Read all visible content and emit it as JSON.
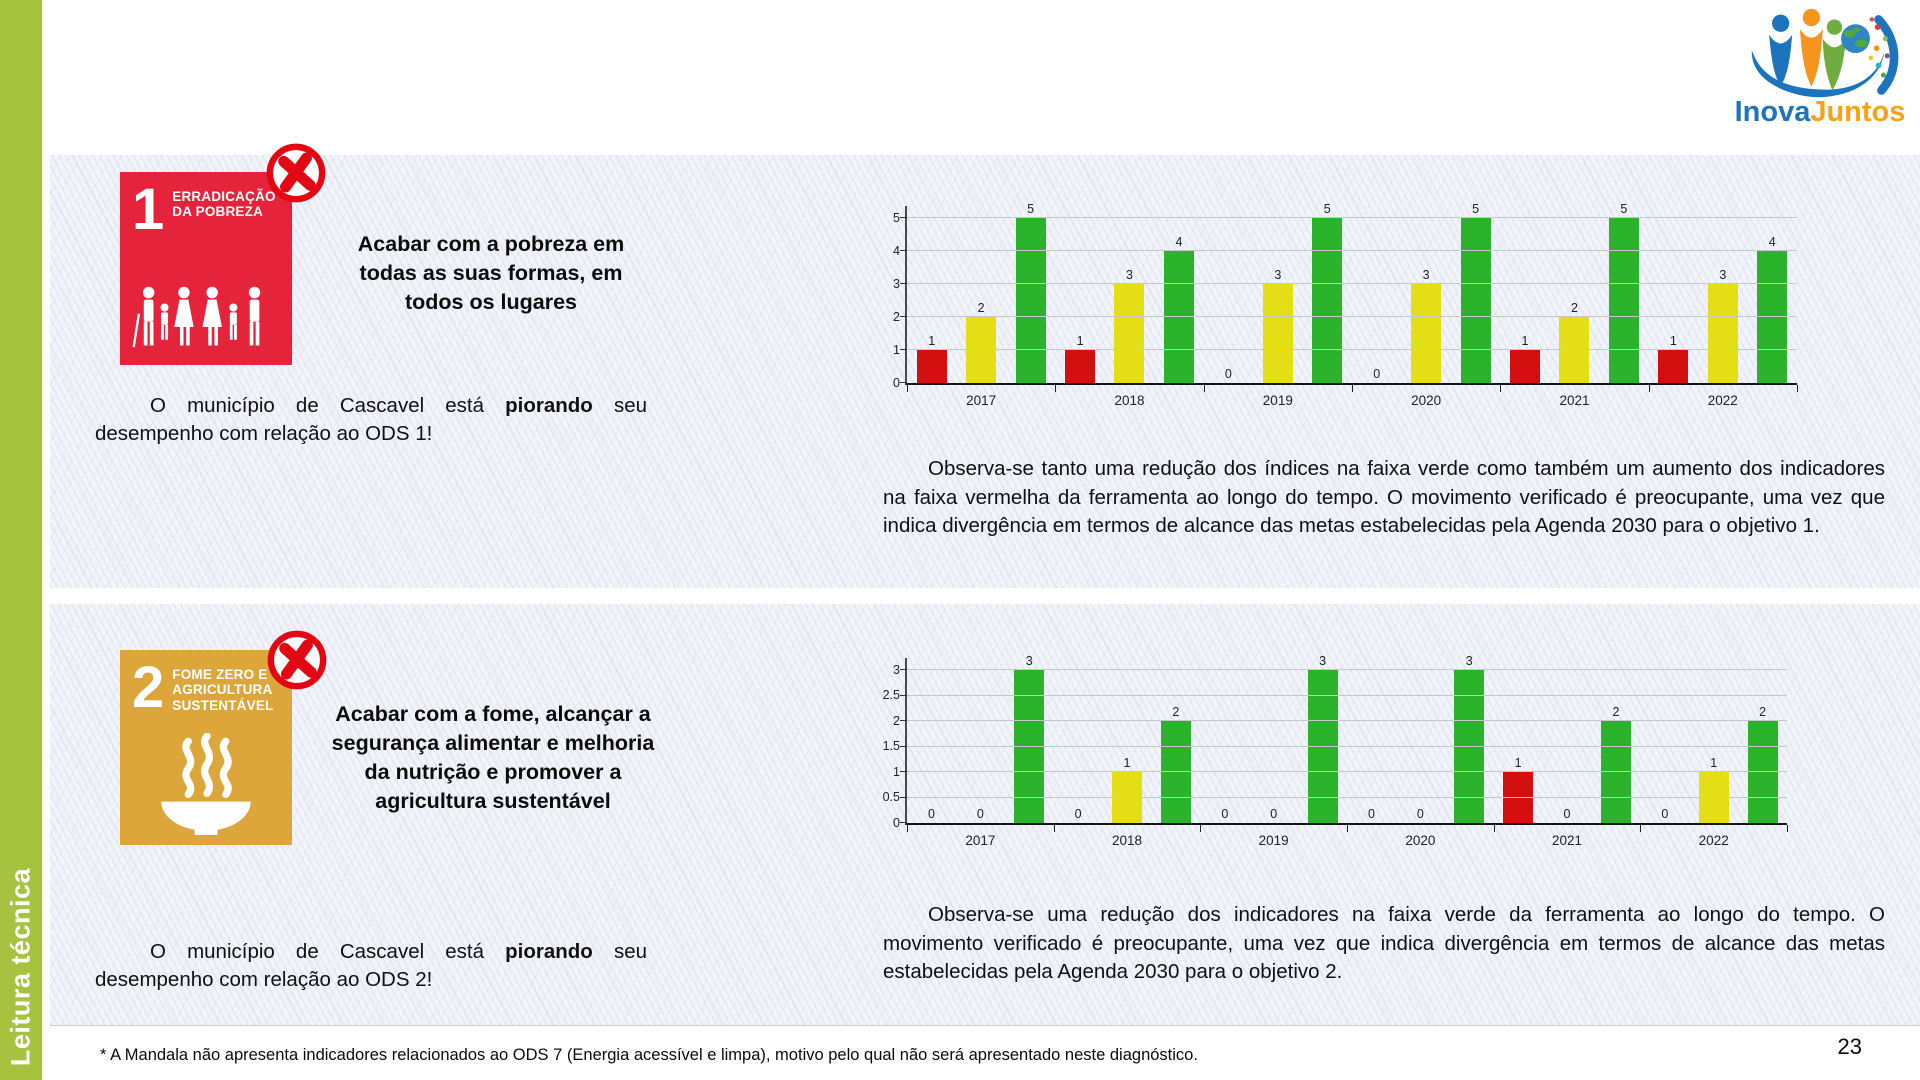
{
  "sidebar": {
    "label": "Leitura técnica",
    "color": "#a6c23f"
  },
  "logo": {
    "part1": "Inova",
    "part2": "Juntos"
  },
  "page": {
    "footnote": "* A Mandala não apresenta indicadores relacionados ao ODS 7 (Energia acessível e limpa), motivo pelo qual não será apresentado neste diagnóstico.",
    "number": "23"
  },
  "sections": [
    {
      "tile": {
        "number": "1",
        "title": "ERRADICAÇÃO DA POBREZA",
        "color": "#e5243b",
        "pictogram": "family-icon"
      },
      "status_icon": "x-circle",
      "goal": "Acabar com a pobreza em todas as suas formas, em todos os lugares",
      "statement": {
        "prefix": "O município de Cascavel está ",
        "bold": "piorando",
        "suffix": " seu desempenho com relação ao ODS 1!"
      },
      "analysis": "Observa-se tanto uma redução dos índices na faixa verde como também um aumento dos indicadores na faixa vermelha da ferramenta ao longo do tempo. O movimento verificado é preocupante, uma vez que indica divergência em termos de alcance das metas estabelecidas pela Agenda 2030 para o objetivo 1."
    },
    {
      "tile": {
        "number": "2",
        "title": "FOME ZERO E AGRICULTURA SUSTENTÁVEL",
        "color": "#dda63a",
        "pictogram": "bowl-icon"
      },
      "status_icon": "x-circle",
      "goal": "Acabar com a fome, alcançar a segurança alimentar e melhoria da nutrição e promover a agricultura sustentável",
      "statement": {
        "prefix": "O município de Cascavel está ",
        "bold": "piorando",
        "suffix": " seu desempenho com relação ao ODS 2!"
      },
      "analysis": "Observa-se uma redução dos indicadores na faixa verde da ferramenta ao longo do tempo. O movimento verificado é preocupante, uma vez que indica divergência em termos de alcance das metas estabelecidas pela Agenda 2030 para o objetivo 2."
    }
  ],
  "chart_data": [
    {
      "type": "bar",
      "title": "",
      "xlabel": "",
      "ylabel": "",
      "categories": [
        "2017",
        "2018",
        "2019",
        "2020",
        "2021",
        "2022"
      ],
      "series": [
        {
          "name": "faixa-vermelha",
          "color": "#d40f0f",
          "values": [
            1,
            1,
            0,
            0,
            1,
            1
          ]
        },
        {
          "name": "faixa-amarela",
          "color": "#e5de14",
          "values": [
            2,
            3,
            3,
            3,
            2,
            3
          ]
        },
        {
          "name": "faixa-verde",
          "color": "#2bb42b",
          "values": [
            5,
            4,
            5,
            5,
            5,
            4
          ]
        }
      ],
      "ylim": [
        0,
        5
      ],
      "yticks": [
        0,
        1,
        2,
        3,
        4,
        5
      ],
      "grid": true,
      "legend": "none",
      "data_labels": true
    },
    {
      "type": "bar",
      "title": "",
      "xlabel": "",
      "ylabel": "",
      "categories": [
        "2017",
        "2018",
        "2019",
        "2020",
        "2021",
        "2022"
      ],
      "series": [
        {
          "name": "faixa-vermelha",
          "color": "#d40f0f",
          "values": [
            0,
            0,
            0,
            0,
            1,
            0
          ]
        },
        {
          "name": "faixa-amarela",
          "color": "#e5de14",
          "values": [
            0,
            1,
            0,
            0,
            0,
            1
          ]
        },
        {
          "name": "faixa-verde",
          "color": "#2bb42b",
          "values": [
            3,
            2,
            3,
            3,
            2,
            2
          ]
        }
      ],
      "ylim": [
        0,
        3
      ],
      "yticks": [
        0,
        0.5,
        1,
        1.5,
        2,
        2.5,
        3
      ],
      "grid": true,
      "legend": "none",
      "data_labels": true
    }
  ]
}
